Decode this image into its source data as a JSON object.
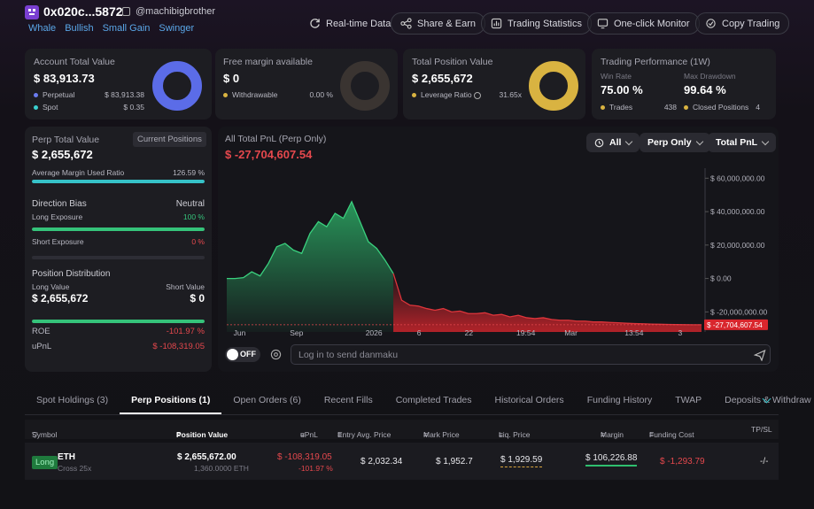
{
  "header": {
    "address": "0x020c...5872",
    "handle": "@machibigbrother",
    "tags": [
      "Whale",
      "Bullish",
      "Small Gain",
      "Swinger"
    ],
    "buttons": {
      "realtime": "Real-time Data",
      "share": "Share & Earn",
      "stats": "Trading Statistics",
      "monitor": "One-click Monitor",
      "copy": "Copy Trading"
    }
  },
  "cards": {
    "account": {
      "title": "Account Total Value",
      "value": "$ 83,913.73",
      "perp_label": "Perpetual",
      "perp_value": "$ 83,913.38",
      "spot_label": "Spot",
      "spot_value": "$ 0.35",
      "perp_share": 0.99996
    },
    "margin": {
      "title": "Free margin available",
      "value": "$ 0",
      "withdraw_label": "Withdrawable",
      "withdraw_value": "0.00 %"
    },
    "position": {
      "title": "Total Position Value",
      "value": "$ 2,655,672",
      "leverage_label": "Leverage Ratio",
      "leverage_value": "31.65x"
    },
    "performance": {
      "title": "Trading Performance (1W)",
      "winrate_label": "Win Rate",
      "winrate_value": "75.00 %",
      "drawdown_label": "Max Drawdown",
      "drawdown_value": "99.64 %",
      "trades_label": "Trades",
      "trades_value": "438",
      "closed_label": "Closed Positions",
      "closed_value": "4"
    }
  },
  "perp": {
    "title": "Perp Total Value",
    "badge": "Current Positions",
    "value": "$ 2,655,672",
    "amur_label": "Average Margin Used Ratio",
    "amur_value": "126.59 %",
    "amur_fill": 1.0,
    "bias_label": "Direction Bias",
    "bias_value": "Neutral",
    "long_exp_label": "Long Exposure",
    "long_exp_value": "100 %",
    "long_exp_fill": 1.0,
    "short_exp_label": "Short Exposure",
    "short_exp_value": "0 %",
    "short_exp_fill": 0,
    "dist_label": "Position Distribution",
    "long_value_label": "Long Value",
    "long_value": "$ 2,655,672",
    "short_value_label": "Short Value",
    "short_value": "$ 0",
    "roe_label": "ROE",
    "roe_value": "-101.97 %",
    "upnl_label": "uPnL",
    "upnl_value": "$ -108,319.05"
  },
  "pnl": {
    "title": "All Total PnL (Perp Only)",
    "value": "$ -27,704,607.54",
    "filters": [
      "All",
      "Perp Only",
      "Total PnL"
    ],
    "toggle_label": "OFF",
    "danmaku_placeholder": "Log in to send danmaku"
  },
  "chart_data": {
    "type": "area",
    "x_ticks": [
      "Jun",
      "Sep",
      "2026",
      "6",
      "22",
      "19:54",
      "Mar",
      "13:54",
      "3"
    ],
    "y_ticks": [
      "$ 60,000,000.00",
      "$ 40,000,000.00",
      "$ 20,000,000.00",
      "$ 0.00",
      "$ -20,000,000.00"
    ],
    "current_label": "$ -27,704,607.54",
    "ylim": [
      -32000000,
      66000000
    ],
    "series": [
      {
        "values": [
          0,
          0,
          500000,
          4000000,
          1500000,
          9000000,
          19000000,
          21000000,
          17000000,
          15000000,
          27000000,
          34000000,
          31000000,
          39000000,
          36000000,
          46000000,
          34000000,
          22000000,
          18000000,
          11000000,
          3000000,
          -13000000,
          -16000000,
          -16500000,
          -18000000,
          -19000000,
          -18000000,
          -20000000,
          -19500000,
          -21000000,
          -21000000,
          -20500000,
          -22000000,
          -21500000,
          -23000000,
          -22000000,
          -23500000,
          -24000000,
          -23500000,
          -24500000,
          -25000000,
          -25000000,
          -25500000,
          -25500000,
          -26000000,
          -26000000,
          -26300000,
          -26500000,
          -26800000,
          -27000000,
          -27100000,
          -27300000,
          -27400000,
          -27500000,
          -27600000,
          -27650000,
          -27700000,
          -27704607
        ]
      }
    ]
  },
  "table": {
    "tabs": [
      "Spot Holdings (3)",
      "Perp Positions (1)",
      "Open Orders (6)",
      "Recent Fills",
      "Completed Trades",
      "Historical Orders",
      "Funding History",
      "TWAP",
      "Deposits & Withdraw"
    ],
    "active_tab": 1,
    "headers": {
      "symbol": "Symbol",
      "position_value": "Position Value",
      "upnl": "uPnL",
      "entry": "Entry Avg. Price",
      "mark": "Mark Price",
      "liq": "Liq. Price",
      "margin": "Margin",
      "funding": "Funding Cost",
      "tpsl": "TP/SL"
    },
    "row": {
      "side": "Long",
      "coin": "ETH",
      "leverage": "Cross 25x",
      "position_value": "$ 2,655,672.00",
      "size": "1,360.0000 ETH",
      "upnl": "$ -108,319.05",
      "upnl_pct": "-101.97 %",
      "entry": "$ 2,032.34",
      "mark": "$ 1,952.7",
      "liq": "$ 1,929.59",
      "margin": "$ 106,226.88",
      "funding": "$ -1,293.79",
      "tpsl": "-/-"
    }
  }
}
